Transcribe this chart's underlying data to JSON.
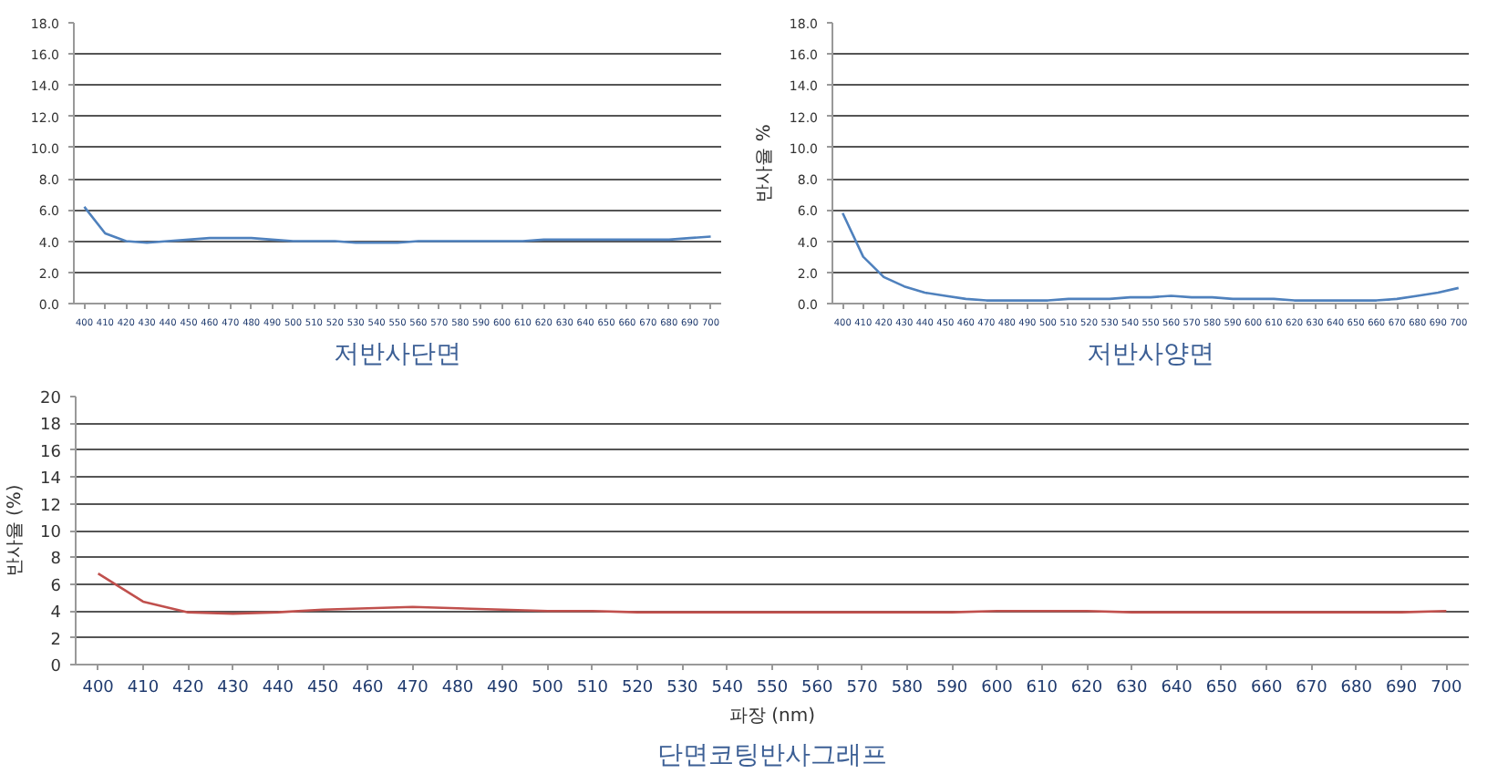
{
  "chart_data": [
    {
      "type": "line",
      "title": "저반사단면",
      "categories": [
        "400",
        "410",
        "420",
        "430",
        "440",
        "450",
        "460",
        "470",
        "480",
        "490",
        "500",
        "510",
        "520",
        "530",
        "540",
        "550",
        "560",
        "570",
        "580",
        "590",
        "600",
        "610",
        "620",
        "630",
        "640",
        "650",
        "660",
        "670",
        "680",
        "690",
        "700"
      ],
      "series": [
        {
          "color": "#4f81bd",
          "values": [
            6.2,
            4.5,
            4.0,
            3.9,
            4.0,
            4.1,
            4.2,
            4.2,
            4.2,
            4.1,
            4.0,
            4.0,
            4.0,
            3.9,
            3.9,
            3.9,
            4.0,
            4.0,
            4.0,
            4.0,
            4.0,
            4.0,
            4.1,
            4.1,
            4.1,
            4.1,
            4.1,
            4.1,
            4.1,
            4.2,
            4.3
          ]
        }
      ],
      "ylim": [
        0,
        18
      ],
      "yticks": [
        {
          "value": 0,
          "label": "0.0"
        },
        {
          "value": 2,
          "label": "2.0"
        },
        {
          "value": 4,
          "label": "4.0"
        },
        {
          "value": 6,
          "label": "6.0"
        },
        {
          "value": 8,
          "label": "8.0"
        },
        {
          "value": 10,
          "label": "10.0"
        },
        {
          "value": 12,
          "label": "12.0"
        },
        {
          "value": 14,
          "label": "14.0"
        },
        {
          "value": 16,
          "label": "16.0"
        },
        {
          "value": 18,
          "label": "18.0"
        }
      ],
      "grid": "y",
      "marker": "none",
      "line_style": "solid"
    },
    {
      "type": "line",
      "title": "저반사양면",
      "ylabel": "반사율 %",
      "categories": [
        "400",
        "410",
        "420",
        "430",
        "440",
        "450",
        "460",
        "470",
        "480",
        "490",
        "500",
        "510",
        "520",
        "530",
        "540",
        "550",
        "560",
        "570",
        "580",
        "590",
        "600",
        "610",
        "620",
        "630",
        "640",
        "650",
        "660",
        "670",
        "680",
        "690",
        "700"
      ],
      "series": [
        {
          "color": "#4f81bd",
          "values": [
            5.8,
            3.0,
            1.7,
            1.1,
            0.7,
            0.5,
            0.3,
            0.2,
            0.2,
            0.2,
            0.2,
            0.3,
            0.3,
            0.3,
            0.4,
            0.4,
            0.5,
            0.4,
            0.4,
            0.3,
            0.3,
            0.3,
            0.2,
            0.2,
            0.2,
            0.2,
            0.2,
            0.3,
            0.5,
            0.7,
            1.0
          ]
        }
      ],
      "ylim": [
        0,
        18
      ],
      "yticks": [
        {
          "value": 0,
          "label": "0.0"
        },
        {
          "value": 2,
          "label": "2.0"
        },
        {
          "value": 4,
          "label": "4.0"
        },
        {
          "value": 6,
          "label": "6.0"
        },
        {
          "value": 8,
          "label": "8.0"
        },
        {
          "value": 10,
          "label": "10.0"
        },
        {
          "value": 12,
          "label": "12.0"
        },
        {
          "value": 14,
          "label": "14.0"
        },
        {
          "value": 16,
          "label": "16.0"
        },
        {
          "value": 18,
          "label": "18.0"
        }
      ],
      "grid": "y",
      "marker": "none",
      "line_style": "solid"
    },
    {
      "type": "line",
      "title": "단면코팅반사그래프",
      "xlabel": "파장 (nm)",
      "ylabel": "반사율 (%)",
      "categories": [
        "400",
        "410",
        "420",
        "430",
        "440",
        "450",
        "460",
        "470",
        "480",
        "490",
        "500",
        "510",
        "520",
        "530",
        "540",
        "550",
        "560",
        "570",
        "580",
        "590",
        "600",
        "610",
        "620",
        "630",
        "640",
        "650",
        "660",
        "670",
        "680",
        "690",
        "700"
      ],
      "series": [
        {
          "color": "#c0504d",
          "values": [
            6.8,
            4.7,
            3.9,
            3.8,
            3.9,
            4.1,
            4.2,
            4.3,
            4.2,
            4.1,
            4.0,
            4.0,
            3.9,
            3.9,
            3.9,
            3.9,
            3.9,
            3.9,
            3.9,
            3.9,
            4.0,
            4.0,
            4.0,
            3.9,
            3.9,
            3.9,
            3.9,
            3.9,
            3.9,
            3.9,
            4.0
          ]
        }
      ],
      "ylim": [
        0,
        20
      ],
      "yticks": [
        0,
        2,
        4,
        6,
        8,
        10,
        12,
        14,
        16,
        18,
        20
      ],
      "grid": "y",
      "marker": "none",
      "line_style": "solid"
    }
  ]
}
